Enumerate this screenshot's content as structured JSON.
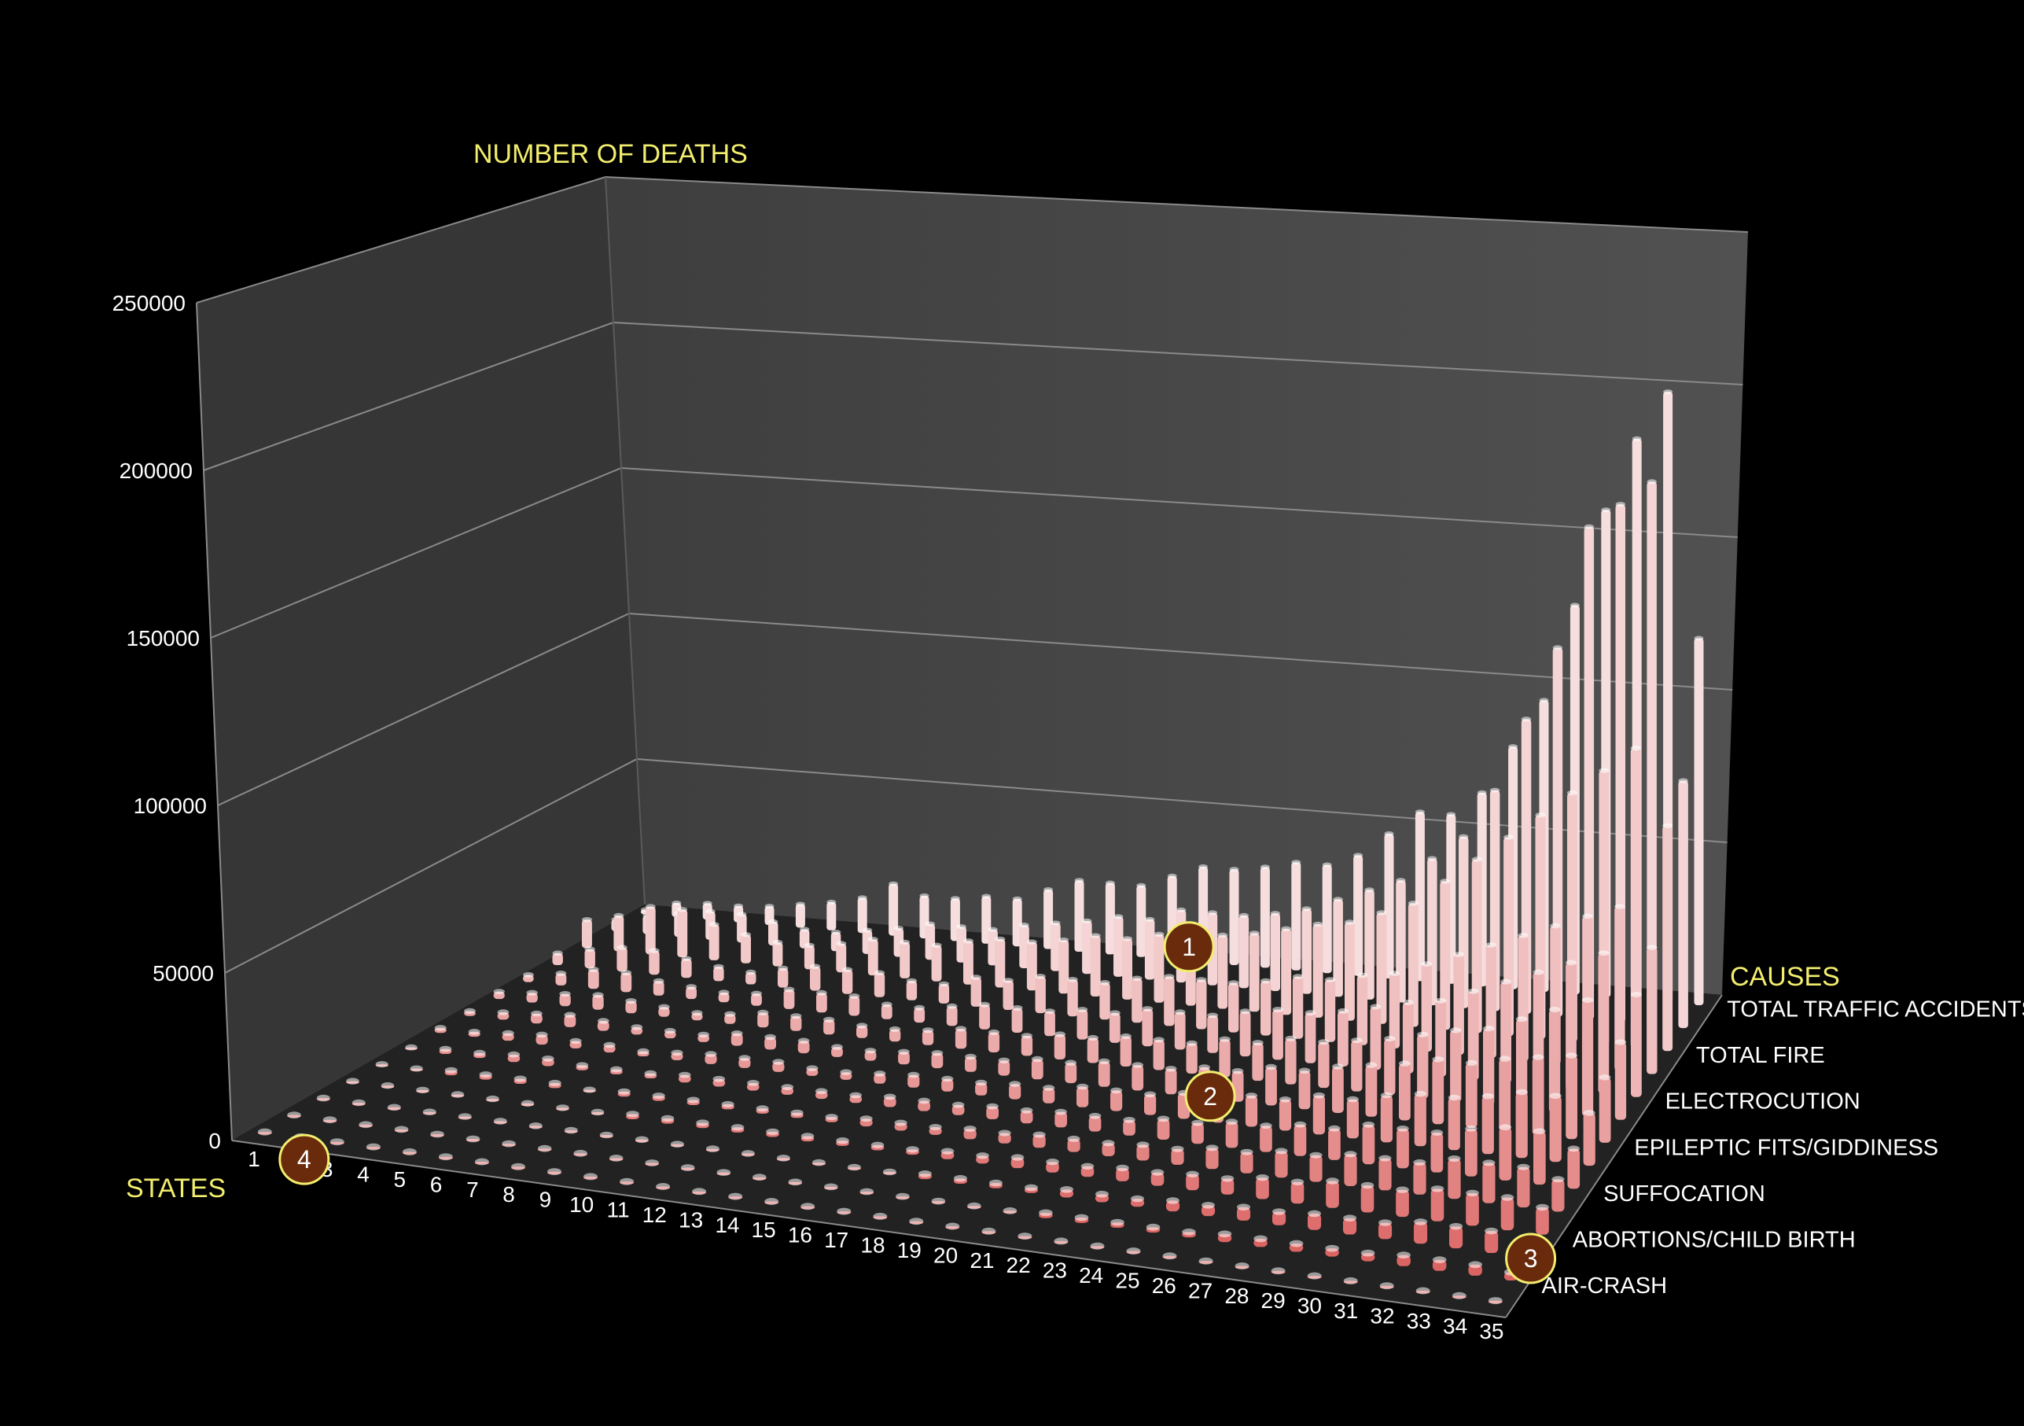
{
  "chart_data": {
    "type": "bar",
    "projection": "3d",
    "title": "",
    "ylabel": "NUMBER OF DEATHS",
    "xlabel": "STATES",
    "zlabel": "CAUSES",
    "yticks": [
      "0",
      "50000",
      "100000",
      "150000",
      "200000",
      "250000"
    ],
    "ylim": [
      0,
      250000
    ],
    "states": [
      "1",
      "2",
      "3",
      "4",
      "5",
      "6",
      "7",
      "8",
      "9",
      "10",
      "11",
      "12",
      "13",
      "14",
      "15",
      "16",
      "17",
      "18",
      "19",
      "20",
      "21",
      "22",
      "23",
      "24",
      "25",
      "26",
      "27",
      "28",
      "29",
      "30",
      "31",
      "32",
      "33",
      "34",
      "35"
    ],
    "cause_labels": [
      "TOTAL TRAFFIC ACCIDENTS",
      "TOTAL FIRE",
      "ELECTROCUTION",
      "EPILEPTIC FITS/GIDDINESS",
      "SUFFOCATION",
      "ABORTIONS/CHILD BIRTH",
      "AIR-CRASH"
    ],
    "row_count": 14,
    "grid": true,
    "colors": {
      "background": "#000000",
      "wall": "#4a4a4a",
      "floor": "#2a2a2a",
      "gridline": "#8a8a8a",
      "bar_back": "#f6dede",
      "bar_front": "#d85a58",
      "label": "#f2ee6e"
    },
    "series": [
      {
        "row": 0,
        "values": [
          2000,
          6000,
          7000,
          7000,
          8000,
          10000,
          12000,
          15000,
          22000,
          18000,
          18000,
          20000,
          20000,
          25000,
          30000,
          30000,
          30000,
          35000,
          40000,
          40000,
          42000,
          45000,
          45000,
          50000,
          60000,
          70000,
          70000,
          80000,
          100000,
          120000,
          160000,
          200000,
          230000,
          250000,
          150000
        ]
      },
      {
        "row": 1,
        "values": [
          5000,
          8000,
          10000,
          12000,
          12000,
          10000,
          8000,
          8000,
          10000,
          12000,
          15000,
          15000,
          15000,
          18000,
          20000,
          22000,
          25000,
          25000,
          30000,
          30000,
          30000,
          32000,
          35000,
          40000,
          45000,
          50000,
          60000,
          70000,
          90000,
          120000,
          150000,
          200000,
          210000,
          220000,
          100000
        ]
      },
      {
        "row": 2,
        "values": [
          12000,
          15000,
          20000,
          20000,
          15000,
          12000,
          10000,
          10000,
          12000,
          15000,
          15000,
          15000,
          18000,
          20000,
          20000,
          22000,
          25000,
          25000,
          28000,
          30000,
          30000,
          32000,
          35000,
          38000,
          40000,
          45000,
          50000,
          60000,
          70000,
          80000,
          90000,
          100000,
          110000,
          120000,
          90000
        ]
      },
      {
        "row": 3,
        "values": [
          5000,
          8000,
          10000,
          10000,
          8000,
          6000,
          5000,
          8000,
          10000,
          10000,
          10000,
          8000,
          8000,
          12000,
          12000,
          15000,
          15000,
          15000,
          18000,
          20000,
          20000,
          20000,
          22000,
          25000,
          25000,
          28000,
          30000,
          35000,
          40000,
          45000,
          50000,
          55000,
          60000,
          65000,
          50000
        ]
      },
      {
        "row": 4,
        "values": [
          3000,
          5000,
          8000,
          8000,
          6000,
          5000,
          4000,
          5000,
          8000,
          8000,
          8000,
          6000,
          6000,
          8000,
          10000,
          10000,
          10000,
          12000,
          12000,
          15000,
          15000,
          15000,
          18000,
          20000,
          20000,
          22000,
          25000,
          28000,
          30000,
          35000,
          40000,
          45000,
          50000,
          55000,
          40000
        ]
      },
      {
        "row": 5,
        "values": [
          3000,
          4000,
          5000,
          6000,
          5000,
          4000,
          3000,
          4000,
          6000,
          6000,
          6000,
          5000,
          5000,
          6000,
          8000,
          8000,
          8000,
          10000,
          10000,
          12000,
          12000,
          12000,
          15000,
          15000,
          18000,
          18000,
          20000,
          22000,
          25000,
          28000,
          30000,
          35000,
          40000,
          45000,
          30000
        ]
      },
      {
        "row": 6,
        "values": [
          2000,
          3000,
          4000,
          5000,
          4000,
          3000,
          3000,
          3000,
          5000,
          5000,
          5000,
          4000,
          4000,
          5000,
          6000,
          6000,
          6000,
          8000,
          8000,
          10000,
          10000,
          10000,
          12000,
          12000,
          15000,
          15000,
          18000,
          20000,
          22000,
          25000,
          25000,
          28000,
          30000,
          32000,
          25000
        ]
      },
      {
        "row": 7,
        "values": [
          2000,
          2000,
          3000,
          4000,
          3000,
          3000,
          2000,
          3000,
          4000,
          4000,
          4000,
          3000,
          3000,
          4000,
          5000,
          5000,
          5000,
          6000,
          6000,
          8000,
          8000,
          8000,
          10000,
          10000,
          12000,
          12000,
          15000,
          15000,
          18000,
          20000,
          20000,
          22000,
          25000,
          25000,
          20000
        ]
      },
      {
        "row": 8,
        "values": [
          1000,
          2000,
          2000,
          3000,
          3000,
          2000,
          2000,
          2000,
          3000,
          3000,
          3000,
          3000,
          3000,
          3000,
          4000,
          4000,
          4000,
          5000,
          5000,
          6000,
          6000,
          6000,
          8000,
          8000,
          10000,
          10000,
          12000,
          12000,
          15000,
          15000,
          15000,
          18000,
          20000,
          20000,
          15000
        ]
      },
      {
        "row": 9,
        "values": [
          1000,
          1000,
          2000,
          2000,
          2000,
          2000,
          1000,
          2000,
          2000,
          2000,
          2000,
          2000,
          2000,
          2000,
          3000,
          3000,
          3000,
          4000,
          4000,
          5000,
          5000,
          5000,
          6000,
          6000,
          8000,
          8000,
          10000,
          10000,
          12000,
          12000,
          12000,
          15000,
          15000,
          15000,
          12000
        ]
      },
      {
        "row": 10,
        "values": [
          1000,
          1000,
          1000,
          1000,
          1000,
          1000,
          1000,
          1000,
          2000,
          2000,
          2000,
          2000,
          2000,
          2000,
          2000,
          2000,
          2000,
          3000,
          3000,
          4000,
          4000,
          4000,
          5000,
          5000,
          6000,
          6000,
          8000,
          8000,
          10000,
          10000,
          10000,
          12000,
          12000,
          12000,
          10000
        ]
      },
      {
        "row": 11,
        "values": [
          1000,
          1000,
          1000,
          1000,
          1000,
          1000,
          1000,
          1000,
          1000,
          1000,
          1000,
          1000,
          1000,
          1000,
          1000,
          1000,
          1000,
          2000,
          2000,
          2000,
          2000,
          3000,
          3000,
          3000,
          4000,
          4000,
          5000,
          5000,
          6000,
          6000,
          6000,
          8000,
          8000,
          8000,
          6000
        ]
      },
      {
        "row": 12,
        "values": [
          1000,
          1000,
          1000,
          1000,
          1000,
          1000,
          1000,
          1000,
          1000,
          1000,
          1000,
          1000,
          1000,
          1000,
          1000,
          1000,
          1000,
          1000,
          1000,
          1000,
          1000,
          2000,
          2000,
          2000,
          2000,
          2000,
          3000,
          3000,
          3000,
          3000,
          3000,
          4000,
          4000,
          4000,
          3000
        ]
      },
      {
        "row": 13,
        "values": [
          1000,
          1000,
          1000,
          1000,
          1000,
          1000,
          1000,
          1000,
          1000,
          1000,
          1000,
          1000,
          1000,
          1000,
          1000,
          1000,
          1000,
          1000,
          1000,
          1000,
          1000,
          1000,
          1000,
          1000,
          1000,
          1000,
          1000,
          1000,
          1000,
          1000,
          1000,
          1000,
          1000,
          1000,
          1000
        ]
      }
    ],
    "markers": [
      {
        "label": "1",
        "state_index": 17,
        "row": 1
      },
      {
        "label": "2",
        "state_index": 21,
        "row": 6
      },
      {
        "label": "3",
        "state_index": 33,
        "row": 11
      },
      {
        "label": "4",
        "state_index": 0,
        "row": 13
      }
    ]
  }
}
